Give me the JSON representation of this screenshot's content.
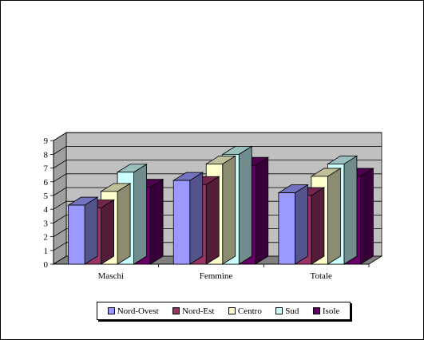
{
  "chart_data": {
    "type": "bar",
    "title": "",
    "xlabel": "",
    "ylabel": "",
    "categories": [
      "Maschi",
      "Femmine",
      "Totale"
    ],
    "ylim": [
      0,
      9
    ],
    "yticks": [
      "0",
      "1",
      "2",
      "3",
      "4",
      "5",
      "6",
      "7",
      "8",
      "9"
    ],
    "grid": true,
    "three_d": true,
    "legend_position": "bottom",
    "series": [
      {
        "name": "Nord-Ovest",
        "color": "#9999ff",
        "values": [
          4.3,
          6.1,
          5.2
        ]
      },
      {
        "name": "Nord-Est",
        "color": "#993366",
        "values": [
          4.1,
          5.8,
          5.0
        ]
      },
      {
        "name": "Centro",
        "color": "#ffffcc",
        "values": [
          5.3,
          7.3,
          6.4
        ]
      },
      {
        "name": "Sud",
        "color": "#ccffff",
        "values": [
          6.7,
          8.0,
          7.3
        ]
      },
      {
        "name": "Isole",
        "color": "#660066",
        "values": [
          5.6,
          7.2,
          6.4
        ]
      }
    ]
  }
}
